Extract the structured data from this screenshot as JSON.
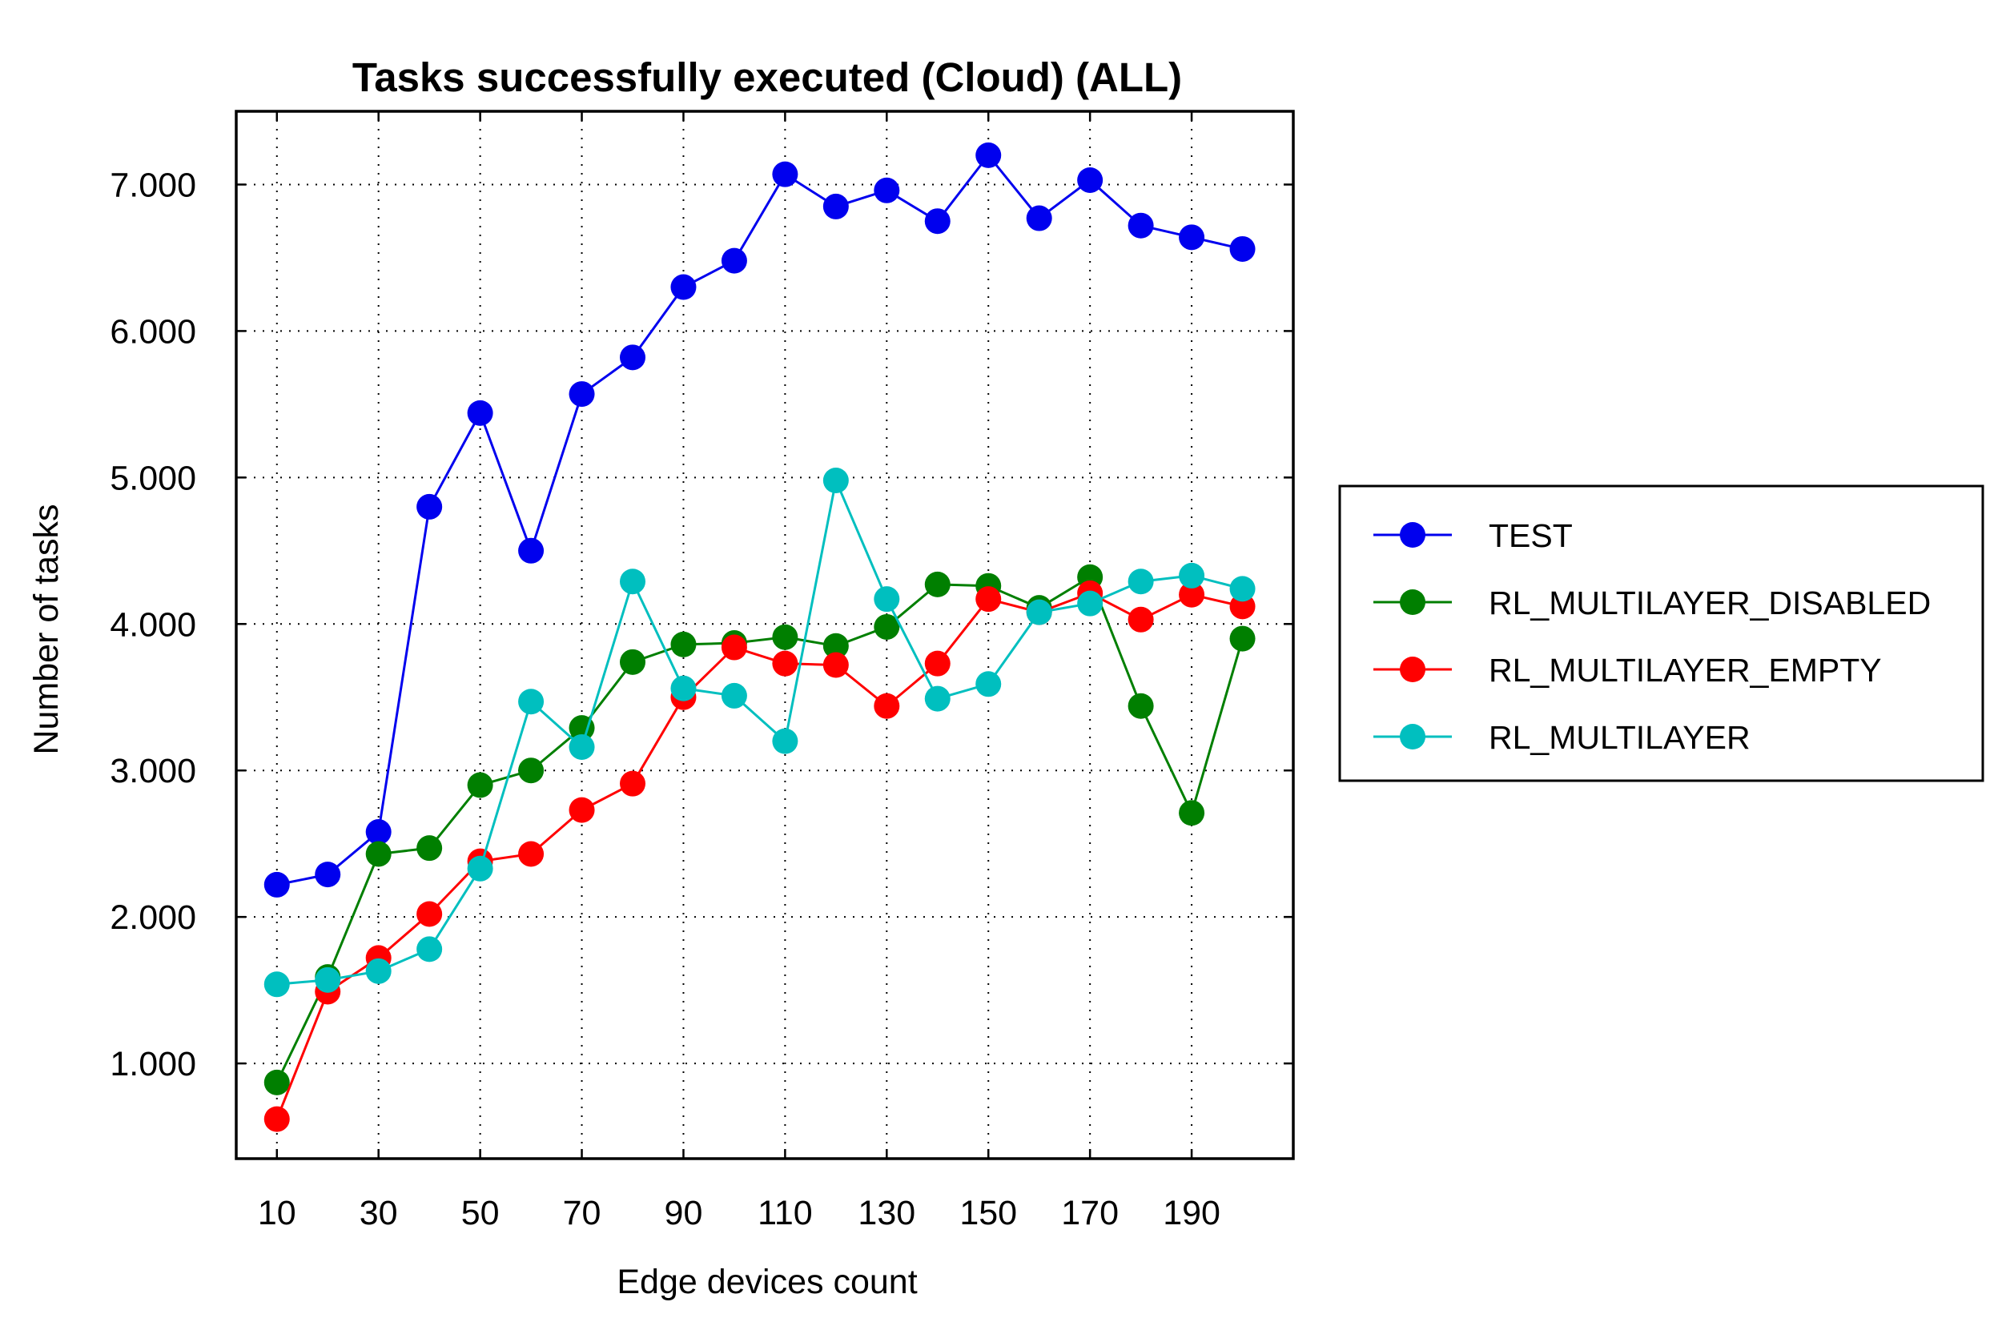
{
  "chart_data": {
    "type": "line",
    "title": "Tasks successfully executed (Cloud) (ALL)",
    "xlabel": "Edge devices count",
    "ylabel": "Number of tasks",
    "x": [
      10,
      20,
      30,
      40,
      50,
      60,
      70,
      80,
      90,
      100,
      110,
      120,
      130,
      140,
      150,
      160,
      170,
      180,
      190,
      200
    ],
    "xticks": [
      10,
      30,
      50,
      70,
      90,
      110,
      130,
      150,
      170,
      190
    ],
    "xtick_labels": [
      "10",
      "30",
      "50",
      "70",
      "90",
      "110",
      "130",
      "150",
      "170",
      "190"
    ],
    "xlim": [
      2,
      210
    ],
    "yticks": [
      1000,
      2000,
      3000,
      4000,
      5000,
      6000,
      7000
    ],
    "ytick_labels": [
      "1.000",
      "2.000",
      "3.000",
      "4.000",
      "5.000",
      "6.000",
      "7.000"
    ],
    "ylim": [
      350,
      7500
    ],
    "grid": true,
    "legend_position": "right",
    "series": [
      {
        "name": "TEST",
        "color": "#0000ee",
        "values": [
          2220,
          2290,
          2580,
          4800,
          5440,
          4500,
          5570,
          5820,
          6300,
          6480,
          7070,
          6850,
          6960,
          6750,
          7200,
          6770,
          7030,
          6720,
          6640,
          6560
        ]
      },
      {
        "name": "RL_MULTILAYER_DISABLED",
        "color": "#007f00",
        "values": [
          870,
          1590,
          2430,
          2470,
          2900,
          3000,
          3290,
          3740,
          3860,
          3870,
          3910,
          3850,
          3980,
          4270,
          4260,
          4110,
          4320,
          3440,
          2710,
          3900
        ]
      },
      {
        "name": "RL_MULTILAYER_EMPTY",
        "color": "#ff0000",
        "values": [
          620,
          1490,
          1720,
          2020,
          2380,
          2430,
          2730,
          2910,
          3500,
          3840,
          3730,
          3720,
          3440,
          3730,
          4170,
          4080,
          4210,
          4030,
          4200,
          4120
        ]
      },
      {
        "name": "RL_MULTILAYER",
        "color": "#00bfbf",
        "values": [
          1540,
          1570,
          1630,
          1780,
          2330,
          3470,
          3160,
          4290,
          3560,
          3510,
          3200,
          4980,
          4170,
          3490,
          3590,
          4080,
          4140,
          4290,
          4330,
          4240
        ]
      }
    ]
  }
}
